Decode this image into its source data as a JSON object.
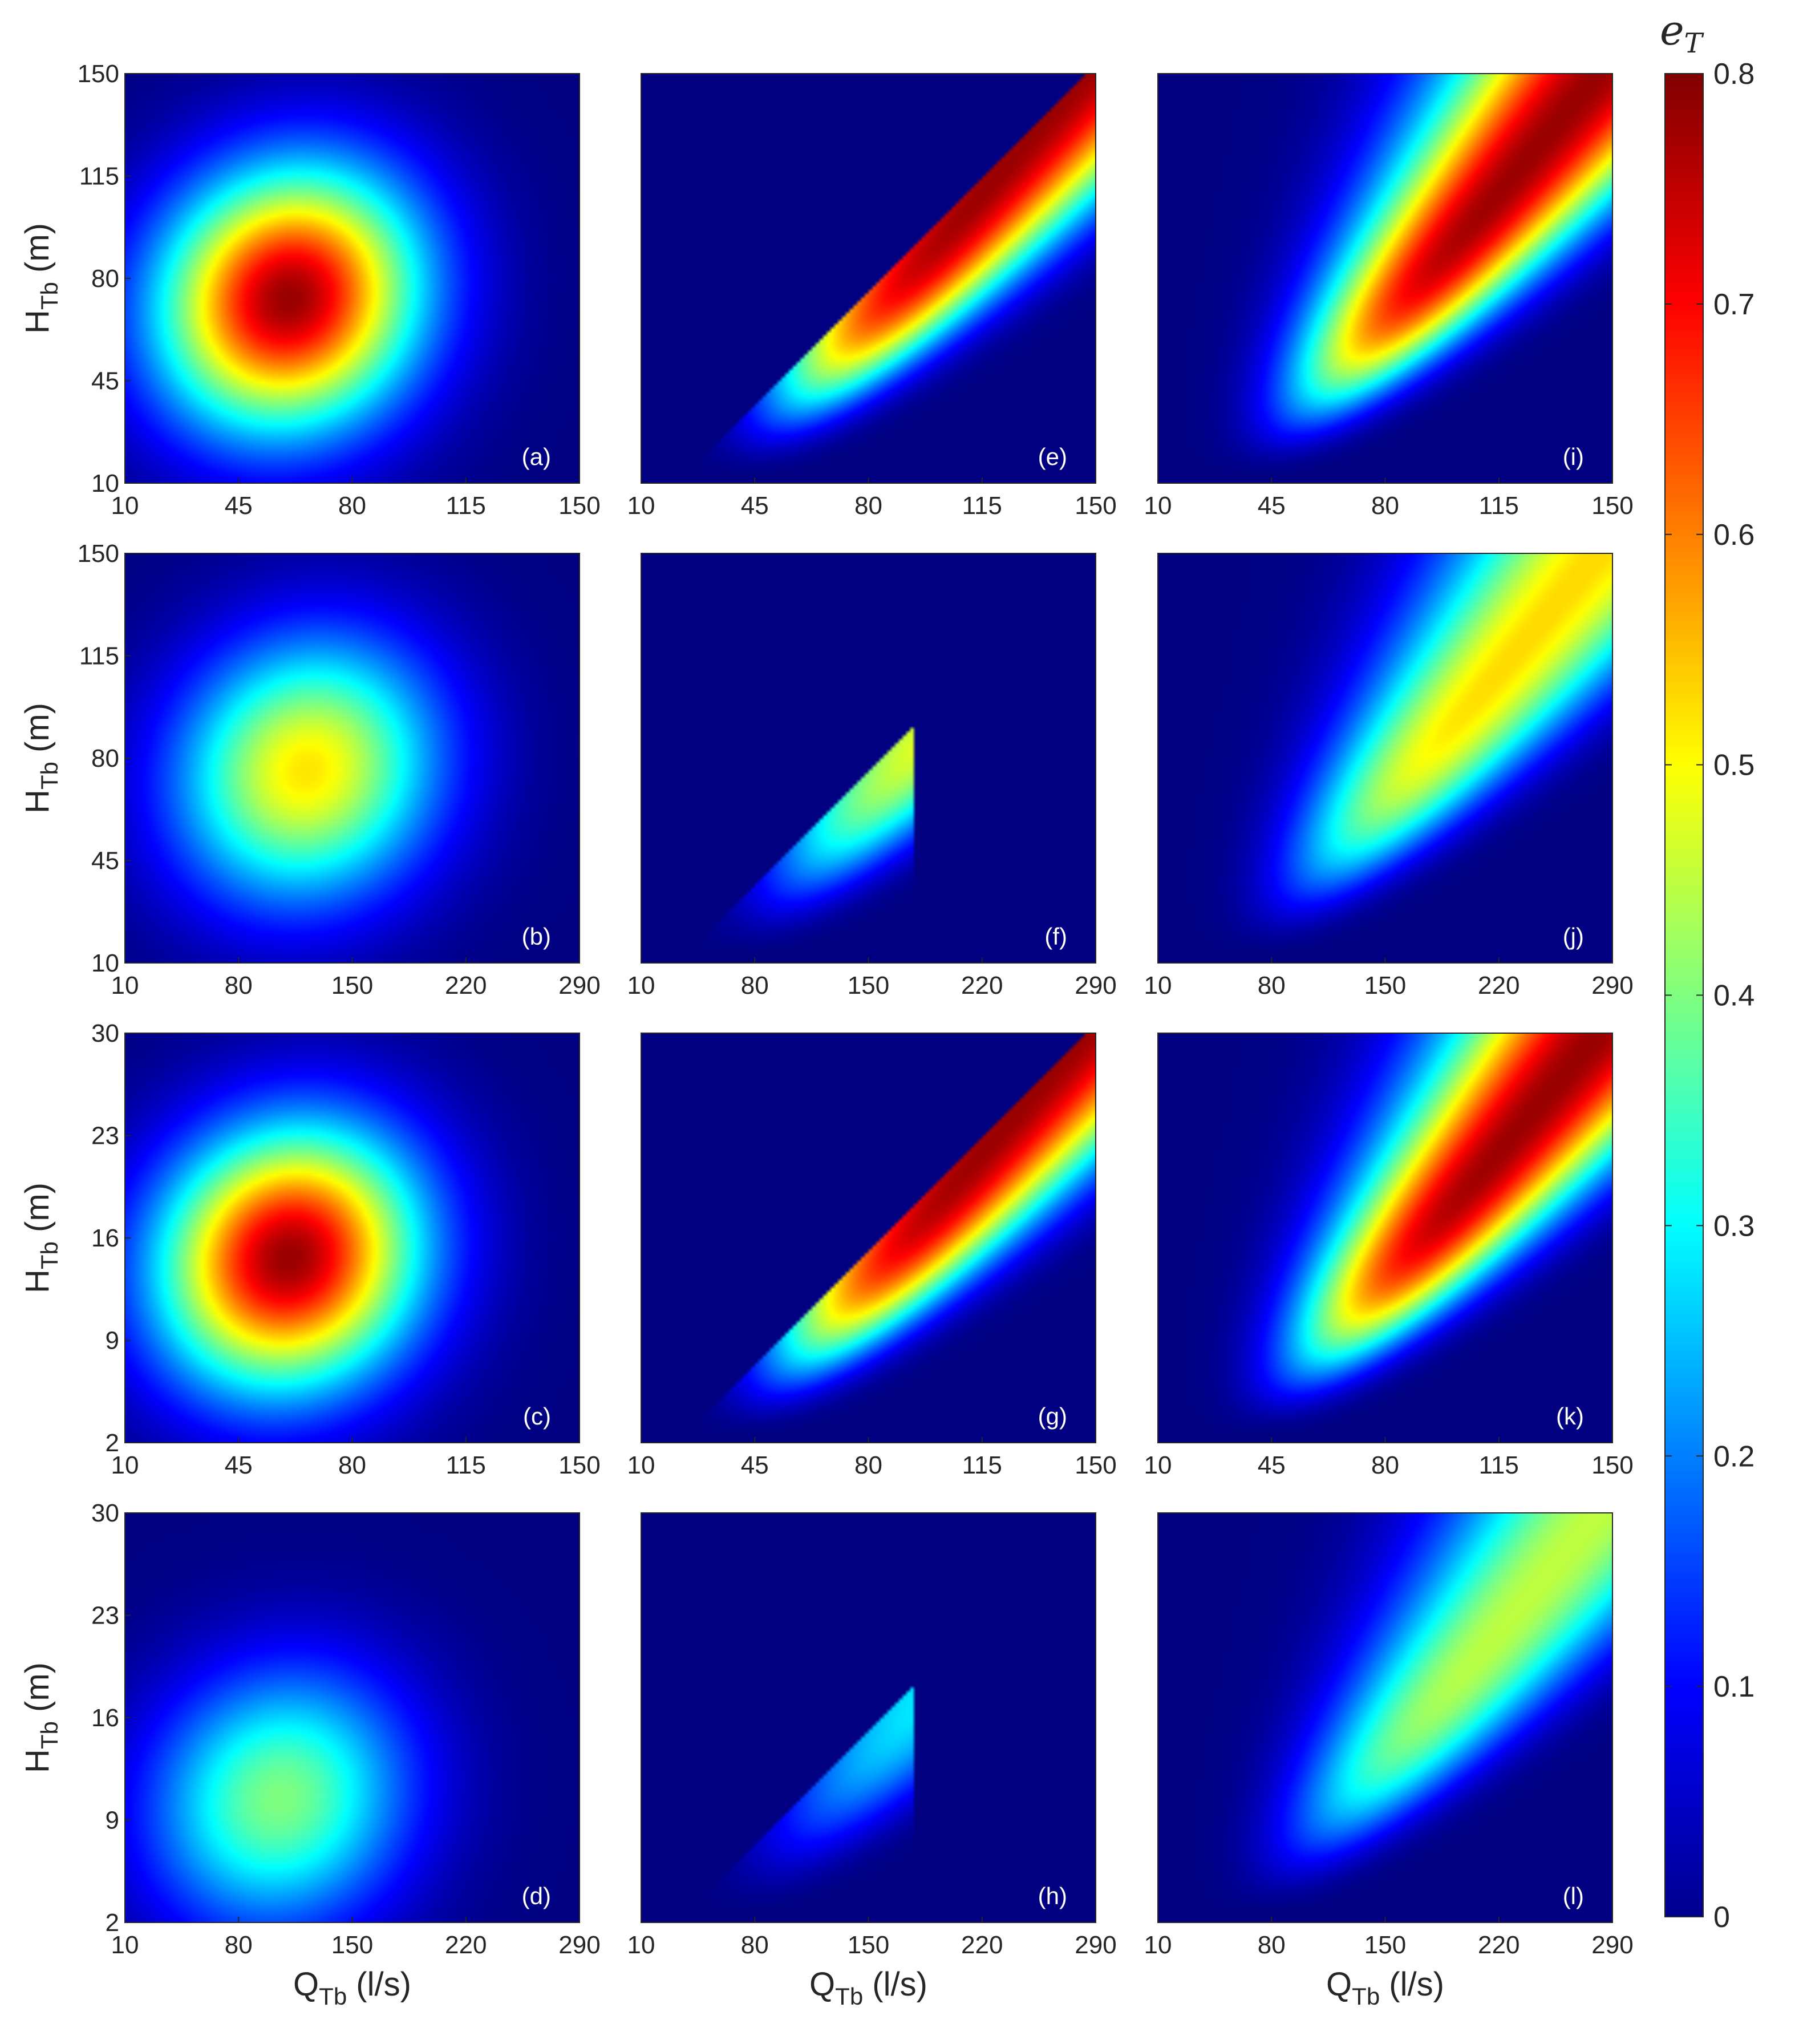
{
  "chart_data": {
    "type": "heatmap",
    "grid": {
      "rows": 4,
      "cols": 3
    },
    "colormap": "jet",
    "colorbar": {
      "title": "e",
      "title_sub": "T",
      "ticks": [
        "0",
        "0.1",
        "0.2",
        "0.3",
        "0.4",
        "0.5",
        "0.6",
        "0.7",
        "0.8"
      ],
      "range": [
        0,
        0.8
      ]
    },
    "x_label": {
      "main": "Q",
      "sub": "Tb",
      "unit": " (l/s)"
    },
    "y_label": {
      "main": "H",
      "sub": "Tb",
      "unit": " (m)"
    },
    "panels": [
      {
        "id": "a",
        "label": "(a)",
        "row": 0,
        "col": 0,
        "model": "blob",
        "peak": 0.78,
        "peak_q": 0.36,
        "peak_h": 0.45,
        "xticks": [
          "10",
          "45",
          "80",
          "115",
          "150"
        ],
        "yticks": [
          "10",
          "45",
          "80",
          "115",
          "150"
        ],
        "xlim": [
          10,
          150
        ],
        "ylim": [
          10,
          150
        ]
      },
      {
        "id": "e",
        "label": "(e)",
        "row": 0,
        "col": 1,
        "model": "ridge_cut",
        "peak": 0.78,
        "cutoff_q": 1.0,
        "xticks": [
          "10",
          "45",
          "80",
          "115",
          "150"
        ],
        "yticks": [],
        "xlim": [
          10,
          150
        ],
        "ylim": [
          10,
          150
        ]
      },
      {
        "id": "i",
        "label": "(i)",
        "row": 0,
        "col": 2,
        "model": "ridge",
        "peak": 0.78,
        "xticks": [
          "10",
          "45",
          "80",
          "115",
          "150"
        ],
        "yticks": [],
        "xlim": [
          10,
          150
        ],
        "ylim": [
          10,
          150
        ]
      },
      {
        "id": "b",
        "label": "(b)",
        "row": 1,
        "col": 0,
        "model": "blob",
        "peak": 0.52,
        "peak_q": 0.4,
        "peak_h": 0.47,
        "xticks": [
          "10",
          "80",
          "150",
          "220",
          "290"
        ],
        "yticks": [
          "10",
          "45",
          "80",
          "115",
          "150"
        ],
        "xlim": [
          10,
          290
        ],
        "ylim": [
          10,
          150
        ]
      },
      {
        "id": "f",
        "label": "(f)",
        "row": 1,
        "col": 1,
        "model": "ridge_cut",
        "peak": 0.5,
        "cutoff_q": 0.6,
        "xticks": [
          "10",
          "80",
          "150",
          "220",
          "290"
        ],
        "yticks": [],
        "xlim": [
          10,
          290
        ],
        "ylim": [
          10,
          150
        ]
      },
      {
        "id": "j",
        "label": "(j)",
        "row": 1,
        "col": 2,
        "model": "ridge",
        "peak": 0.53,
        "xticks": [
          "10",
          "80",
          "150",
          "220",
          "290"
        ],
        "yticks": [],
        "xlim": [
          10,
          290
        ],
        "ylim": [
          10,
          150
        ]
      },
      {
        "id": "c",
        "label": "(c)",
        "row": 2,
        "col": 0,
        "model": "blob",
        "peak": 0.78,
        "peak_q": 0.36,
        "peak_h": 0.45,
        "xticks": [
          "10",
          "45",
          "80",
          "115",
          "150"
        ],
        "yticks": [
          "2",
          "9",
          "16",
          "23",
          "30"
        ],
        "xlim": [
          10,
          150
        ],
        "ylim": [
          2,
          30
        ]
      },
      {
        "id": "g",
        "label": "(g)",
        "row": 2,
        "col": 1,
        "model": "ridge_cut",
        "peak": 0.78,
        "cutoff_q": 1.0,
        "xticks": [
          "10",
          "45",
          "80",
          "115",
          "150"
        ],
        "yticks": [],
        "xlim": [
          10,
          150
        ],
        "ylim": [
          2,
          30
        ]
      },
      {
        "id": "k",
        "label": "(k)",
        "row": 2,
        "col": 2,
        "model": "ridge",
        "peak": 0.78,
        "xticks": [
          "10",
          "45",
          "80",
          "115",
          "150"
        ],
        "yticks": [],
        "xlim": [
          10,
          150
        ],
        "ylim": [
          2,
          30
        ]
      },
      {
        "id": "d",
        "label": "(d)",
        "row": 3,
        "col": 0,
        "model": "blob",
        "peak": 0.4,
        "peak_q": 0.34,
        "peak_h": 0.3,
        "xticks": [
          "10",
          "80",
          "150",
          "220",
          "290"
        ],
        "yticks": [
          "2",
          "9",
          "16",
          "23",
          "30"
        ],
        "xlim": [
          10,
          290
        ],
        "ylim": [
          2,
          30
        ]
      },
      {
        "id": "h",
        "label": "(h)",
        "row": 3,
        "col": 1,
        "model": "ridge_cut",
        "peak": 0.3,
        "cutoff_q": 0.6,
        "xticks": [
          "10",
          "80",
          "150",
          "220",
          "290"
        ],
        "yticks": [],
        "xlim": [
          10,
          290
        ],
        "ylim": [
          2,
          30
        ]
      },
      {
        "id": "l",
        "label": "(l)",
        "row": 3,
        "col": 2,
        "model": "ridge",
        "peak": 0.45,
        "xticks": [
          "10",
          "80",
          "150",
          "220",
          "290"
        ],
        "yticks": [],
        "xlim": [
          10,
          290
        ],
        "ylim": [
          2,
          30
        ]
      }
    ]
  }
}
